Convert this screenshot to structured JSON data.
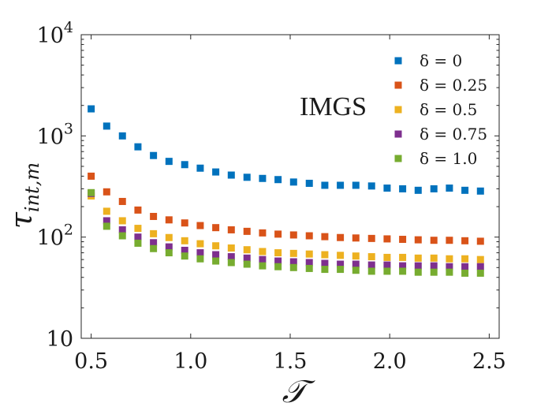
{
  "chart_data": {
    "type": "scatter",
    "title": "",
    "annotation": "IMGS",
    "xlabel": "𝒯",
    "ylabel": {
      "base": "τ",
      "subscript": "int,m"
    },
    "xscale": "linear",
    "yscale": "log",
    "xlim": [
      0.45,
      2.55
    ],
    "ylim": [
      10,
      10000
    ],
    "grid": false,
    "legend_position": "top-right",
    "x_ticks": [
      0.5,
      1.0,
      1.5,
      2.0,
      2.5
    ],
    "x_tick_labels": [
      "0.5",
      "1.0",
      "1.5",
      "2.0",
      "2.5"
    ],
    "y_ticks": [
      {
        "value": 10,
        "base": "10",
        "exp": ""
      },
      {
        "value": 100,
        "base": "10",
        "exp": "2"
      },
      {
        "value": 1000,
        "base": "10",
        "exp": "3"
      },
      {
        "value": 10000,
        "base": "10",
        "exp": "4"
      }
    ],
    "x": [
      0.5,
      0.578,
      0.657,
      0.735,
      0.813,
      0.891,
      0.97,
      1.048,
      1.126,
      1.204,
      1.283,
      1.361,
      1.439,
      1.517,
      1.596,
      1.674,
      1.752,
      1.83,
      1.909,
      1.987,
      2.065,
      2.143,
      2.222,
      2.3,
      2.378,
      2.456
    ],
    "series": [
      {
        "name": "δ = 0",
        "color": "#0072BD",
        "values": [
          1850,
          1250,
          1000,
          780,
          640,
          560,
          520,
          480,
          440,
          410,
          390,
          380,
          370,
          350,
          340,
          325,
          325,
          325,
          320,
          305,
          300,
          290,
          300,
          305,
          290,
          285
        ]
      },
      {
        "name": "δ = 0.25",
        "color": "#D95319",
        "values": [
          400,
          280,
          225,
          185,
          160,
          148,
          138,
          130,
          124,
          118,
          114,
          110,
          107,
          105,
          103,
          101,
          99,
          98,
          97,
          96,
          95,
          94,
          93,
          93,
          92,
          91
        ]
      },
      {
        "name": "δ = 0.5",
        "color": "#EDB120",
        "values": [
          255,
          180,
          145,
          122,
          108,
          99,
          92,
          86,
          82,
          78,
          75,
          72,
          70,
          69,
          68,
          67,
          66,
          65,
          64,
          63,
          63,
          62,
          62,
          61,
          61,
          60
        ]
      },
      {
        "name": "δ = 0.75",
        "color": "#7E2F8E",
        "values": [
          270,
          145,
          118,
          100,
          88,
          80,
          74,
          70,
          67,
          64,
          62,
          60,
          58,
          57,
          56,
          55,
          54,
          54,
          53,
          53,
          52,
          52,
          52,
          51,
          51,
          51
        ]
      },
      {
        "name": "δ = 1.0",
        "color": "#77AC30",
        "values": [
          275,
          128,
          103,
          87,
          77,
          70,
          65,
          61,
          58,
          56,
          54,
          52,
          51,
          50,
          49,
          48,
          48,
          47,
          46,
          46,
          46,
          45,
          45,
          45,
          44,
          44
        ]
      }
    ]
  }
}
